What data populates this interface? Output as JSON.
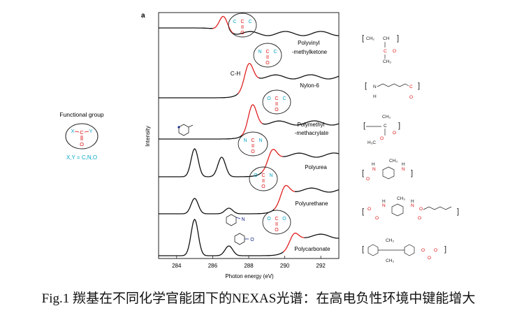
{
  "panel_label": "a",
  "left_legend": {
    "title": "Functional group",
    "motif": {
      "left": "X",
      "right": "Y",
      "center": "C",
      "bottom": "O"
    },
    "xy_text": "X,Y = C,N,O"
  },
  "chart_data": {
    "type": "line",
    "xlabel": "Photon energy (eV)",
    "ylabel": "Intensity",
    "xticks": [
      284,
      286,
      288,
      290,
      292
    ],
    "xlim": [
      283,
      293
    ],
    "grid": false,
    "series": [
      {
        "name": "Polyvinyl -methylketone",
        "label_lines": [
          "Polyvinyl",
          "-methylketone"
        ],
        "peak_eV": 286.6,
        "motif": {
          "left": "C",
          "right": "C",
          "center": "C",
          "bottom": "O"
        },
        "formula": [
          "CH₂",
          "CH",
          "C",
          "O",
          "CH₃"
        ]
      },
      {
        "name": "Nylon-6",
        "label_lines": [
          "Nylon-6"
        ],
        "peak_eV": 288.0,
        "annotation": "C-H",
        "motif": {
          "left": "N",
          "right": "C",
          "center": "C",
          "bottom": "O"
        },
        "formula": [
          "N",
          "H",
          "C",
          "O"
        ]
      },
      {
        "name": "Polymethyl -methacrylate",
        "label_lines": [
          "Polymethyl",
          "-methacrylate"
        ],
        "peak_eV": 288.2,
        "motif": {
          "left": "O",
          "right": "C",
          "center": "C",
          "bottom": "O"
        },
        "formula": [
          "CH₃",
          "C",
          "O",
          "H₃C",
          "O"
        ]
      },
      {
        "name": "Polyurea",
        "label_lines": [
          "Polyurea"
        ],
        "peak_eV": 289.3,
        "motif": {
          "left": "N",
          "right": "N",
          "center": "C",
          "bottom": "O"
        },
        "formula": [
          "N",
          "H",
          "CH₃",
          "N",
          "H",
          "O"
        ]
      },
      {
        "name": "Polyurethane",
        "label_lines": [
          "Polyurethane"
        ],
        "peak_eV": 290.0,
        "motif": {
          "left": "O",
          "right": "N",
          "center": "C",
          "bottom": "O"
        },
        "formula": [
          "N",
          "H",
          "CH₃",
          "N",
          "H",
          "O",
          "O",
          "O",
          "O"
        ]
      },
      {
        "name": "Polycarbonate",
        "label_lines": [
          "Polycarbonate"
        ],
        "peak_eV": 290.5,
        "motif": {
          "left": "O",
          "right": "O",
          "center": "C",
          "bottom": "O"
        },
        "formula": [
          "CH₃",
          "CH₃",
          "O",
          "O",
          "O"
        ]
      }
    ],
    "side_annotations": [
      "N",
      "O"
    ]
  },
  "caption": "Fig.1 羰基在不同化学官能团下的NEXAS光谱：在高电负性环境中键能增大"
}
